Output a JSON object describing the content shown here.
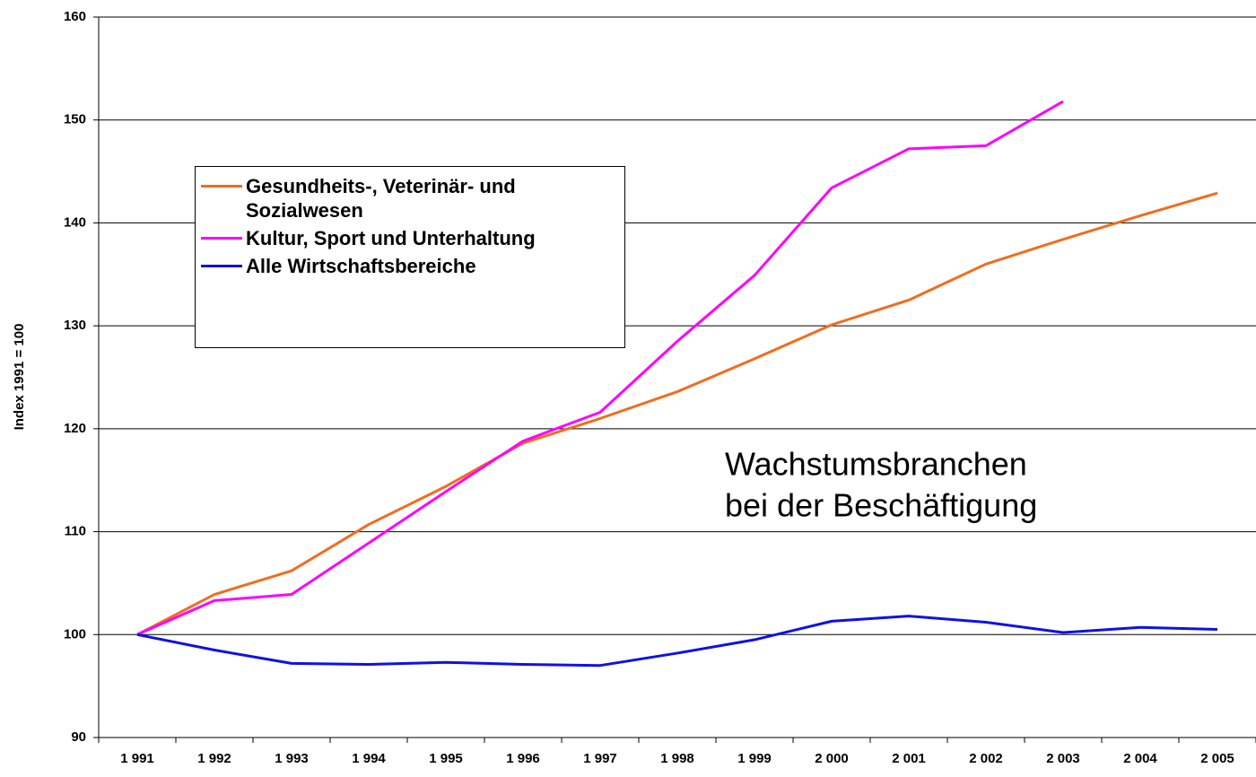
{
  "chart_data": {
    "type": "line",
    "y_label": "Index 1991 = 100",
    "annotation": [
      "Wachstumsbranchen",
      "bei der Beschäftigung"
    ],
    "categories": [
      "1 991",
      "1 992",
      "1 993",
      "1 994",
      "1 995",
      "1 996",
      "1 997",
      "1 998",
      "1 999",
      "2 000",
      "2 001",
      "2 002",
      "2 003",
      "2 004",
      "2 005"
    ],
    "series": [
      {
        "name": "Gesundheits-, Veterinär- und Sozialwesen",
        "color": "#f26c1e",
        "values": [
          100,
          103.9,
          106.2,
          110.7,
          114.4,
          118.6,
          121.0,
          123.6,
          126.8,
          130.1,
          132.5,
          136.0,
          138.4,
          140.7,
          142.9
        ]
      },
      {
        "name": "Kultur, Sport und Unterhaltung",
        "color": "#ff00ff",
        "values": [
          100,
          103.3,
          103.9,
          108.9,
          113.9,
          118.8,
          121.6,
          128.5,
          134.9,
          143.4,
          147.2,
          147.5,
          151.8,
          null,
          null
        ]
      },
      {
        "name": "Alle Wirtschaftsbereiche",
        "color": "#1010e8",
        "values": [
          100,
          98.5,
          97.2,
          97.1,
          97.3,
          97.1,
          97.0,
          98.2,
          99.5,
          101.3,
          101.8,
          101.2,
          100.2,
          100.7,
          100.5
        ]
      }
    ],
    "ylim": [
      90,
      160
    ],
    "yticks": [
      90,
      100,
      110,
      120,
      130,
      140,
      150,
      160
    ],
    "grid": true
  }
}
